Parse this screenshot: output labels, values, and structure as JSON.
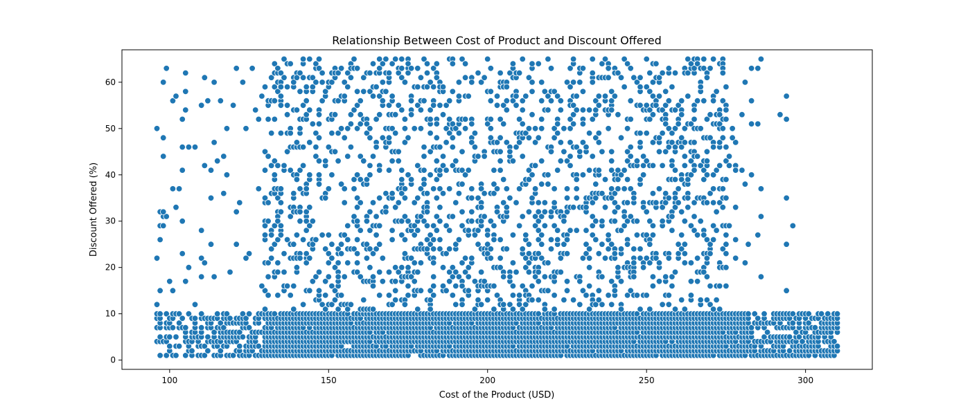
{
  "chart_data": {
    "type": "scatter",
    "title": "Relationship Between Cost of Product and Discount Offered",
    "xlabel": "Cost of the Product (USD)",
    "ylabel": "Discount Offered (%)",
    "xlim": [
      85,
      321
    ],
    "ylim": [
      -2,
      67
    ],
    "xticks": [
      100,
      150,
      200,
      250,
      300
    ],
    "yticks": [
      0,
      10,
      20,
      30,
      40,
      50,
      60
    ],
    "grid": false,
    "marker_color": "#1f77b4",
    "marker_edge_color": "#ffffff",
    "x_range_of_points": [
      96,
      310
    ],
    "y_range_of_points": [
      1,
      65
    ],
    "dense_band": {
      "y_range": [
        1,
        10
      ],
      "x_range": [
        96,
        310
      ]
    },
    "sparse_region": {
      "y_range": [
        11,
        65
      ],
      "x_range_dense": [
        130,
        275
      ],
      "x_range_sparse": [
        96,
        130
      ]
    },
    "outlier_points": [
      {
        "x": 96,
        "y": 50
      },
      {
        "x": 96,
        "y": 22
      },
      {
        "x": 96,
        "y": 12
      },
      {
        "x": 96,
        "y": 9
      },
      {
        "x": 97,
        "y": 32
      },
      {
        "x": 97,
        "y": 26
      },
      {
        "x": 97,
        "y": 15
      },
      {
        "x": 98,
        "y": 60
      },
      {
        "x": 98,
        "y": 48
      },
      {
        "x": 98,
        "y": 44
      },
      {
        "x": 98,
        "y": 32
      },
      {
        "x": 98,
        "y": 29
      },
      {
        "x": 99,
        "y": 63
      },
      {
        "x": 100,
        "y": 17
      },
      {
        "x": 101,
        "y": 56
      },
      {
        "x": 101,
        "y": 37
      },
      {
        "x": 102,
        "y": 57
      },
      {
        "x": 103,
        "y": 37
      },
      {
        "x": 104,
        "y": 52
      },
      {
        "x": 104,
        "y": 46
      },
      {
        "x": 104,
        "y": 41
      },
      {
        "x": 104,
        "y": 30
      },
      {
        "x": 104,
        "y": 23
      },
      {
        "x": 105,
        "y": 62
      },
      {
        "x": 105,
        "y": 58
      },
      {
        "x": 105,
        "y": 54
      },
      {
        "x": 106,
        "y": 46
      },
      {
        "x": 108,
        "y": 46
      },
      {
        "x": 110,
        "y": 55
      },
      {
        "x": 110,
        "y": 28
      },
      {
        "x": 110,
        "y": 22
      },
      {
        "x": 110,
        "y": 18
      },
      {
        "x": 111,
        "y": 61
      },
      {
        "x": 111,
        "y": 42
      },
      {
        "x": 111,
        "y": 21
      },
      {
        "x": 112,
        "y": 56
      },
      {
        "x": 113,
        "y": 41
      },
      {
        "x": 113,
        "y": 35
      },
      {
        "x": 113,
        "y": 25
      },
      {
        "x": 114,
        "y": 60
      },
      {
        "x": 114,
        "y": 47
      },
      {
        "x": 115,
        "y": 43
      },
      {
        "x": 116,
        "y": 56
      },
      {
        "x": 117,
        "y": 44
      },
      {
        "x": 117,
        "y": 36
      },
      {
        "x": 118,
        "y": 50
      },
      {
        "x": 118,
        "y": 40
      },
      {
        "x": 120,
        "y": 55
      },
      {
        "x": 121,
        "y": 63
      },
      {
        "x": 121,
        "y": 32
      },
      {
        "x": 121,
        "y": 25
      },
      {
        "x": 123,
        "y": 60
      },
      {
        "x": 124,
        "y": 50
      },
      {
        "x": 124,
        "y": 22
      },
      {
        "x": 126,
        "y": 63
      },
      {
        "x": 127,
        "y": 54
      },
      {
        "x": 128,
        "y": 52
      },
      {
        "x": 128,
        "y": 37
      },
      {
        "x": 129,
        "y": 57
      },
      {
        "x": 283,
        "y": 63
      },
      {
        "x": 283,
        "y": 56
      },
      {
        "x": 283,
        "y": 51
      },
      {
        "x": 283,
        "y": 40
      },
      {
        "x": 285,
        "y": 63
      },
      {
        "x": 285,
        "y": 51
      },
      {
        "x": 285,
        "y": 27
      },
      {
        "x": 286,
        "y": 65
      },
      {
        "x": 286,
        "y": 37
      },
      {
        "x": 286,
        "y": 31
      },
      {
        "x": 286,
        "y": 18
      },
      {
        "x": 292,
        "y": 53
      },
      {
        "x": 294,
        "y": 57
      },
      {
        "x": 294,
        "y": 52
      },
      {
        "x": 294,
        "y": 35
      },
      {
        "x": 294,
        "y": 25
      },
      {
        "x": 294,
        "y": 15
      },
      {
        "x": 296,
        "y": 29
      }
    ]
  }
}
